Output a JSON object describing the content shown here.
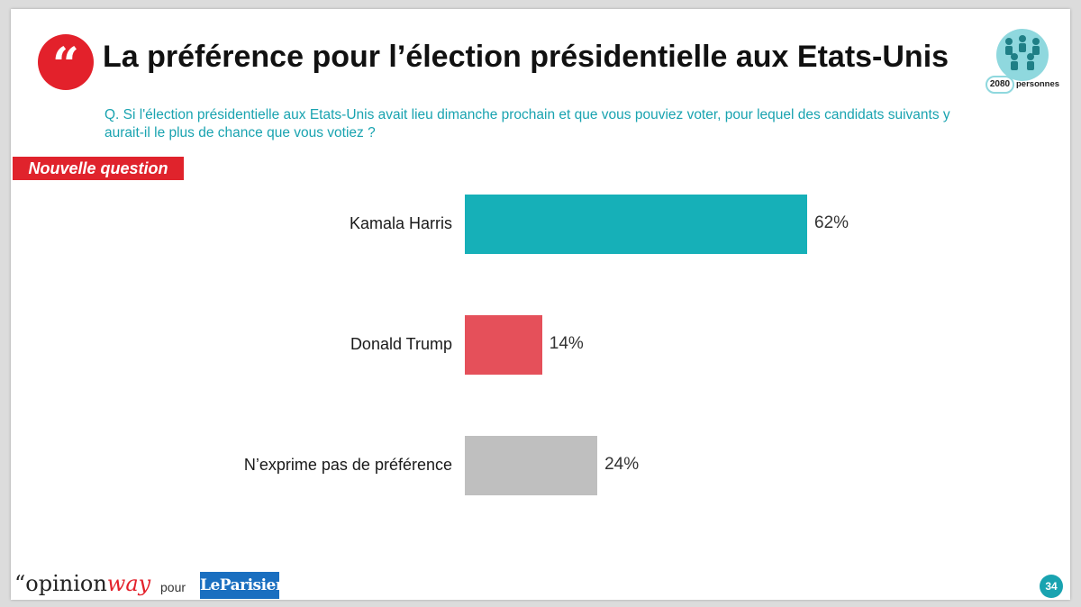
{
  "header": {
    "title": "La préférence pour l’élection présidentielle aux Etats-Unis",
    "quote_glyph": "“",
    "sample_count": "2080",
    "sample_label": "personnes"
  },
  "question": "Q. Si l'élection présidentielle aux Etats-Unis avait lieu dimanche prochain et que vous pouviez voter, pour lequel des candidats suivants y aurait-il le plus de chance que vous votiez ?",
  "badge": "Nouvelle question",
  "chart_data": {
    "type": "bar",
    "orientation": "horizontal",
    "title": "La préférence pour l’élection présidentielle aux Etats-Unis",
    "categories": [
      "Kamala Harris",
      "Donald Trump",
      "N’exprime pas de préférence"
    ],
    "values": [
      62,
      14,
      24
    ],
    "labels": [
      "62%",
      "14%",
      "24%"
    ],
    "colors": [
      "#16b0b8",
      "#e5505a",
      "#bfbfbf"
    ],
    "xlim": [
      0,
      100
    ],
    "unit": "%"
  },
  "footer": {
    "brand_prefix": "“opinion",
    "brand_suffix": "way",
    "pour": "pour",
    "partner": "LeParisien",
    "page_number": "34"
  }
}
